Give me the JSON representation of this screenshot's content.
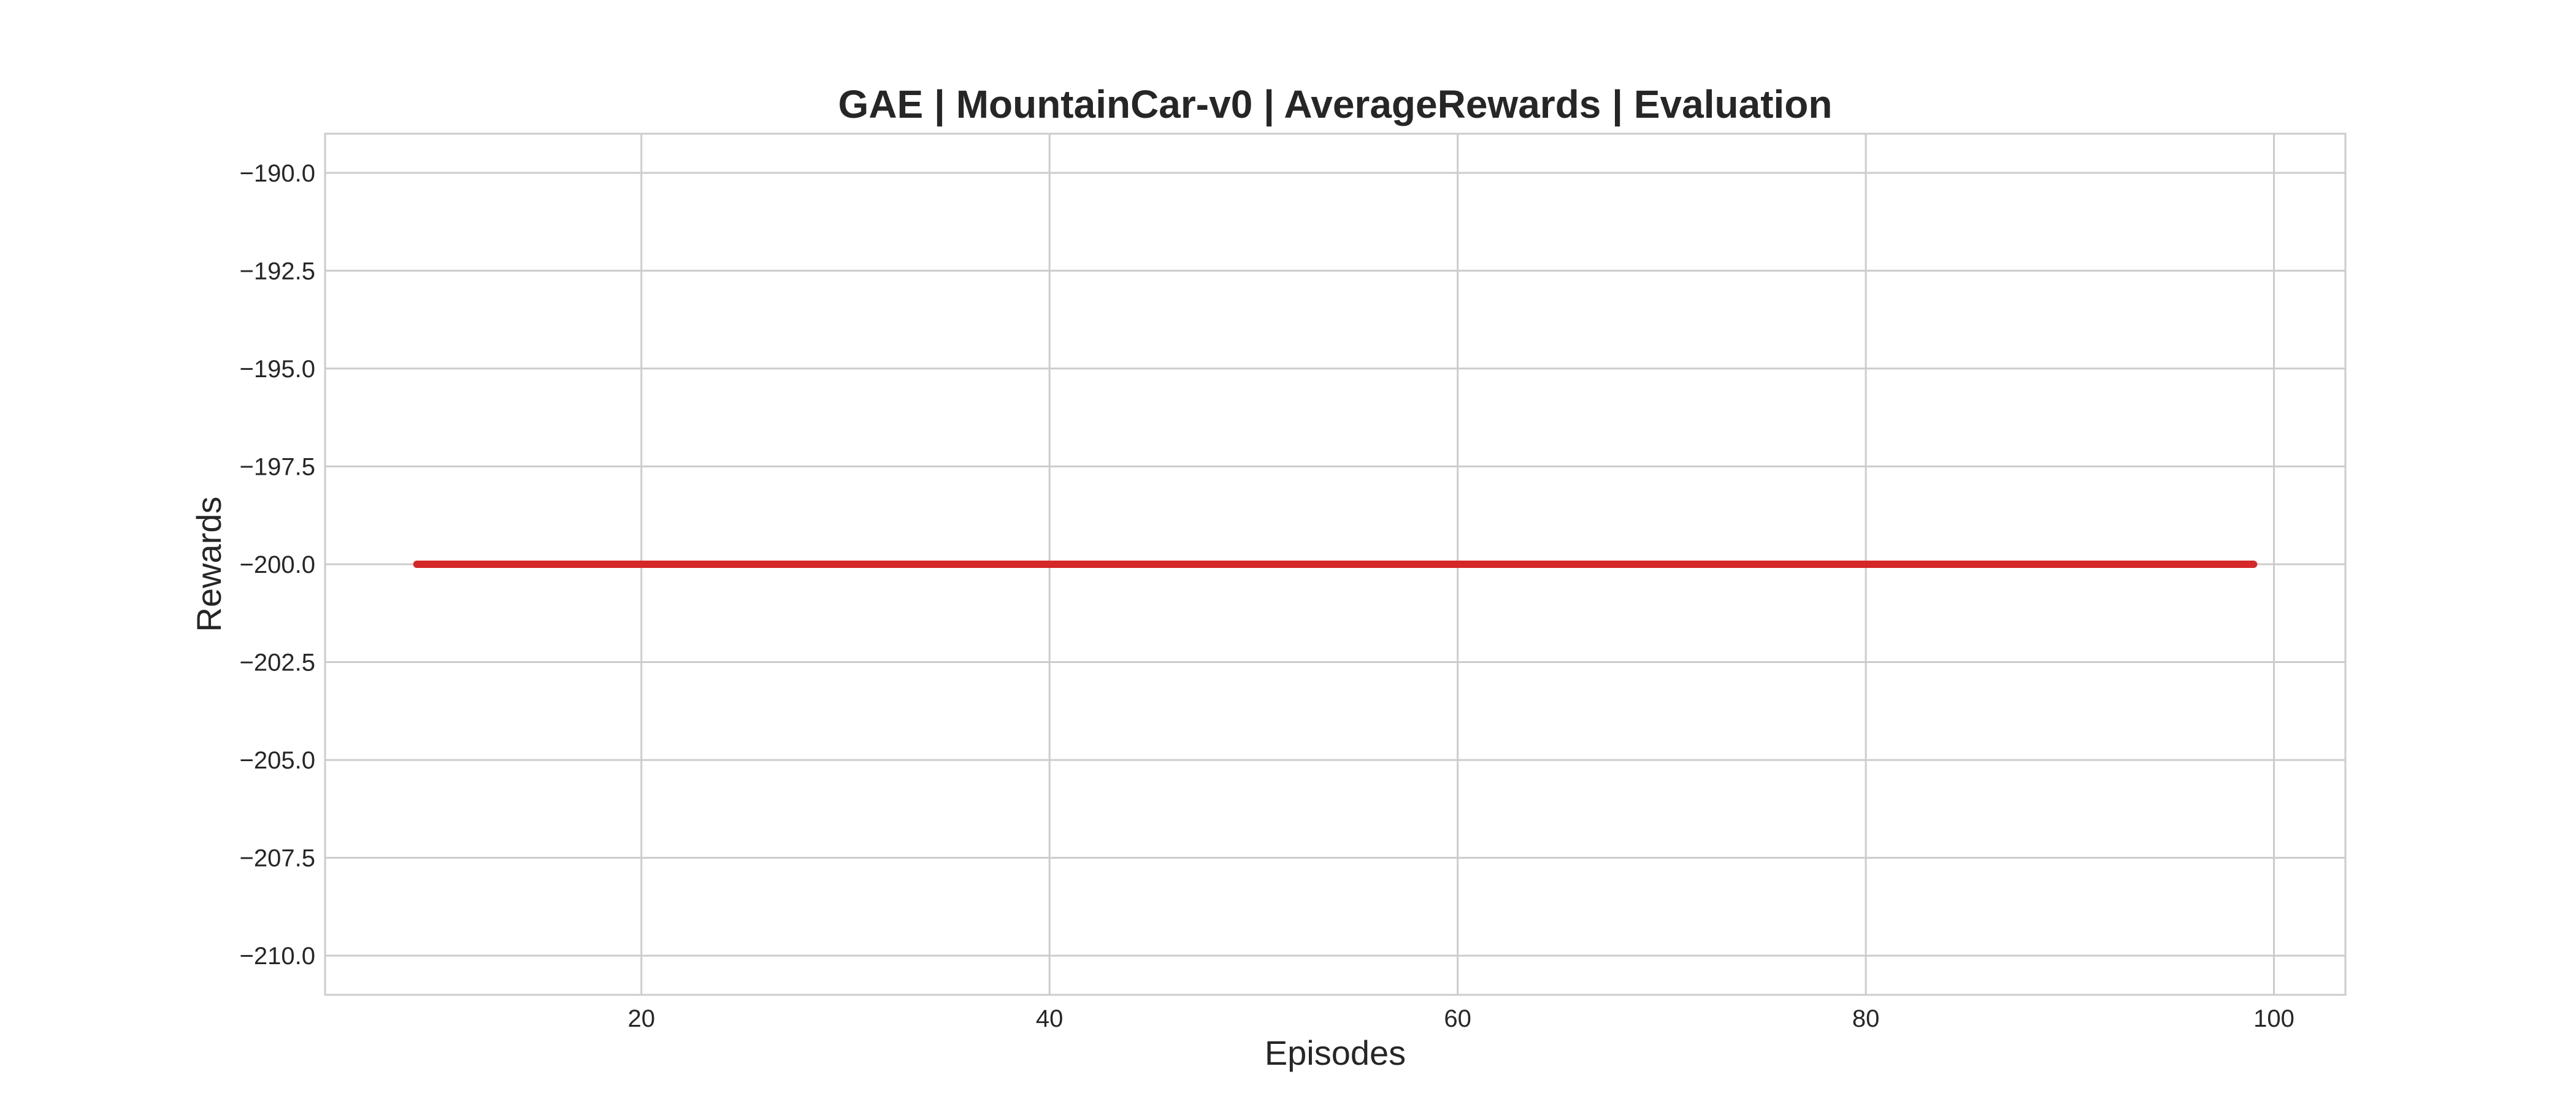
{
  "chart_data": {
    "type": "line",
    "title": "GAE | MountainCar-v0 | AverageRewards | Evaluation",
    "xlabel": "Episodes",
    "ylabel": "Rewards",
    "xlim": [
      4.5,
      103.5
    ],
    "ylim": [
      -211,
      -189
    ],
    "x_ticks": [
      20,
      40,
      60,
      80,
      100
    ],
    "y_ticks": [
      -190.0,
      -192.5,
      -195.0,
      -197.5,
      -200.0,
      -202.5,
      -205.0,
      -207.5,
      -210.0
    ],
    "grid": true,
    "legend": "none",
    "series": [
      {
        "color": "#d62728",
        "x": [
          9,
          99
        ],
        "y": [
          -200,
          -200
        ]
      }
    ]
  }
}
